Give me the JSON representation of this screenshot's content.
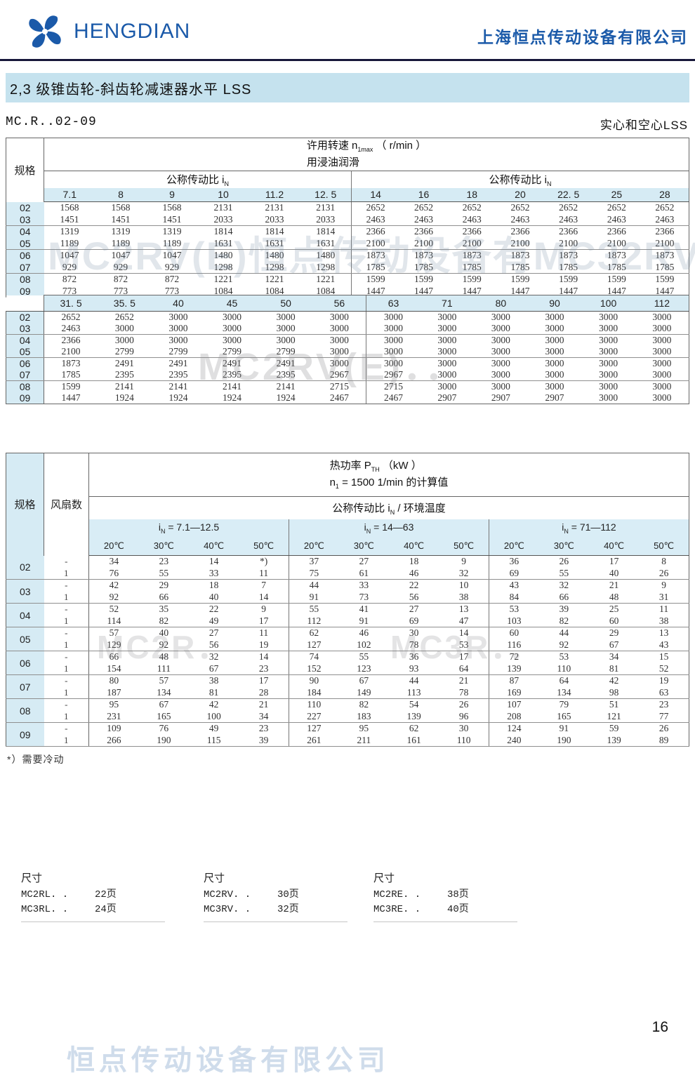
{
  "header": {
    "logo_text": "HENGDIAN",
    "company_name": "上海恒点传动设备有限公司",
    "brand_color": "#1b5aa9"
  },
  "title_bar": "2,3 级锥齿轮-斜齿轮减速器水平 LSS",
  "subtitle_left": "MC.R..02-09",
  "subtitle_right": "实心和空心LSS",
  "speed_table": {
    "spec_label": "规格",
    "title_pre": "许用转速 n",
    "title_sub": "1max",
    "title_suf": " （ r/min ）",
    "title_line2": "用浸油润滑",
    "group_pre": "公称传动比 i",
    "group_sub": "N",
    "part1": {
      "ratios": [
        "7.1",
        "8",
        "9",
        "10",
        "11.2",
        "12. 5",
        "14",
        "16",
        "18",
        "20",
        "22. 5",
        "25",
        "28"
      ],
      "rows": [
        {
          "spec": "02",
          "values": [
            "1568",
            "1568",
            "1568",
            "2131",
            "2131",
            "2131",
            "2652",
            "2652",
            "2652",
            "2652",
            "2652",
            "2652",
            "2652"
          ]
        },
        {
          "spec": "03",
          "values": [
            "1451",
            "1451",
            "1451",
            "2033",
            "2033",
            "2033",
            "2463",
            "2463",
            "2463",
            "2463",
            "2463",
            "2463",
            "2463"
          ]
        },
        {
          "spec": "04",
          "values": [
            "1319",
            "1319",
            "1319",
            "1814",
            "1814",
            "1814",
            "2366",
            "2366",
            "2366",
            "2366",
            "2366",
            "2366",
            "2366"
          ]
        },
        {
          "spec": "05",
          "values": [
            "1189",
            "1189",
            "1189",
            "1631",
            "1631",
            "1631",
            "2100",
            "2100",
            "2100",
            "2100",
            "2100",
            "2100",
            "2100"
          ]
        },
        {
          "spec": "06",
          "values": [
            "1047",
            "1047",
            "1047",
            "1480",
            "1480",
            "1480",
            "1873",
            "1873",
            "1873",
            "1873",
            "1873",
            "1873",
            "1873"
          ]
        },
        {
          "spec": "07",
          "values": [
            "929",
            "929",
            "929",
            "1298",
            "1298",
            "1298",
            "1785",
            "1785",
            "1785",
            "1785",
            "1785",
            "1785",
            "1785"
          ]
        },
        {
          "spec": "08",
          "values": [
            "872",
            "872",
            "872",
            "1221",
            "1221",
            "1221",
            "1599",
            "1599",
            "1599",
            "1599",
            "1599",
            "1599",
            "1599"
          ]
        },
        {
          "spec": "09",
          "values": [
            "773",
            "773",
            "773",
            "1084",
            "1084",
            "1084",
            "1447",
            "1447",
            "1447",
            "1447",
            "1447",
            "1447",
            "1447"
          ]
        }
      ]
    },
    "part2": {
      "ratios": [
        "31. 5",
        "35. 5",
        "40",
        "45",
        "50",
        "56",
        "63",
        "71",
        "80",
        "90",
        "100",
        "112"
      ],
      "rows": [
        {
          "spec": "02",
          "values": [
            "2652",
            "2652",
            "3000",
            "3000",
            "3000",
            "3000",
            "3000",
            "3000",
            "3000",
            "3000",
            "3000",
            "3000"
          ]
        },
        {
          "spec": "03",
          "values": [
            "2463",
            "3000",
            "3000",
            "3000",
            "3000",
            "3000",
            "3000",
            "3000",
            "3000",
            "3000",
            "3000",
            "3000"
          ]
        },
        {
          "spec": "04",
          "values": [
            "2366",
            "3000",
            "3000",
            "3000",
            "3000",
            "3000",
            "3000",
            "3000",
            "3000",
            "3000",
            "3000",
            "3000"
          ]
        },
        {
          "spec": "05",
          "values": [
            "2100",
            "2799",
            "2799",
            "2799",
            "2799",
            "3000",
            "3000",
            "3000",
            "3000",
            "3000",
            "3000",
            "3000"
          ]
        },
        {
          "spec": "06",
          "values": [
            "1873",
            "2491",
            "2491",
            "2491",
            "2491",
            "3000",
            "3000",
            "3000",
            "3000",
            "3000",
            "3000",
            "3000"
          ]
        },
        {
          "spec": "07",
          "values": [
            "1785",
            "2395",
            "2395",
            "2395",
            "2395",
            "2967",
            "2967",
            "3000",
            "3000",
            "3000",
            "3000",
            "3000"
          ]
        },
        {
          "spec": "08",
          "values": [
            "1599",
            "2141",
            "2141",
            "2141",
            "2141",
            "2715",
            "2715",
            "3000",
            "3000",
            "3000",
            "3000",
            "3000"
          ]
        },
        {
          "spec": "09",
          "values": [
            "1447",
            "1924",
            "1924",
            "1924",
            "1924",
            "2467",
            "2467",
            "2907",
            "2907",
            "2907",
            "3000",
            "3000"
          ]
        }
      ]
    }
  },
  "thermal_table": {
    "spec_label": "规格",
    "fan_label": "风扇数",
    "title1_pre": "热功率 P",
    "title1_sub": "TH",
    "title1_suf": " （kW ）",
    "title2_pre": "n",
    "title2_sub": "1",
    "title2_suf": " = 1500 1/min 的计算值",
    "subtitle_pre": "公称传动比 i",
    "subtitle_sub": "N",
    "subtitle_suf": " / 环境温度",
    "groups": [
      {
        "pre": "i",
        "sub": "N",
        "suf": " = 7.1—12.5"
      },
      {
        "pre": "i",
        "sub": "N",
        "suf": " = 14—63"
      },
      {
        "pre": "i",
        "sub": "N",
        "suf": " = 71—112"
      }
    ],
    "temps": [
      "20℃",
      "30℃",
      "40℃",
      "50℃"
    ],
    "fan_values": [
      "-",
      "1"
    ],
    "rows": [
      {
        "spec": "02",
        "no_fan": [
          "34",
          "23",
          "14",
          "*)",
          "37",
          "27",
          "18",
          "9",
          "36",
          "26",
          "17",
          "8"
        ],
        "with_fan": [
          "76",
          "55",
          "33",
          "11",
          "75",
          "61",
          "46",
          "32",
          "69",
          "55",
          "40",
          "26"
        ]
      },
      {
        "spec": "03",
        "no_fan": [
          "42",
          "29",
          "18",
          "7",
          "44",
          "33",
          "22",
          "10",
          "43",
          "32",
          "21",
          "9"
        ],
        "with_fan": [
          "92",
          "66",
          "40",
          "14",
          "91",
          "73",
          "56",
          "38",
          "84",
          "66",
          "48",
          "31"
        ]
      },
      {
        "spec": "04",
        "no_fan": [
          "52",
          "35",
          "22",
          "9",
          "55",
          "41",
          "27",
          "13",
          "53",
          "39",
          "25",
          "11"
        ],
        "with_fan": [
          "114",
          "82",
          "49",
          "17",
          "112",
          "91",
          "69",
          "47",
          "103",
          "82",
          "60",
          "38"
        ]
      },
      {
        "spec": "05",
        "no_fan": [
          "57",
          "40",
          "27",
          "11",
          "62",
          "46",
          "30",
          "14",
          "60",
          "44",
          "29",
          "13"
        ],
        "with_fan": [
          "129",
          "92",
          "56",
          "19",
          "127",
          "102",
          "78",
          "53",
          "116",
          "92",
          "67",
          "43"
        ]
      },
      {
        "spec": "06",
        "no_fan": [
          "66",
          "48",
          "32",
          "14",
          "74",
          "55",
          "36",
          "17",
          "72",
          "53",
          "34",
          "15"
        ],
        "with_fan": [
          "154",
          "111",
          "67",
          "23",
          "152",
          "123",
          "93",
          "64",
          "139",
          "110",
          "81",
          "52"
        ]
      },
      {
        "spec": "07",
        "no_fan": [
          "80",
          "57",
          "38",
          "17",
          "90",
          "67",
          "44",
          "21",
          "87",
          "64",
          "42",
          "19"
        ],
        "with_fan": [
          "187",
          "134",
          "81",
          "28",
          "184",
          "149",
          "113",
          "78",
          "169",
          "134",
          "98",
          "63"
        ]
      },
      {
        "spec": "08",
        "no_fan": [
          "95",
          "67",
          "42",
          "21",
          "110",
          "82",
          "54",
          "26",
          "107",
          "79",
          "51",
          "23"
        ],
        "with_fan": [
          "231",
          "165",
          "100",
          "34",
          "227",
          "183",
          "139",
          "96",
          "208",
          "165",
          "121",
          "77"
        ]
      },
      {
        "spec": "09",
        "no_fan": [
          "109",
          "76",
          "49",
          "23",
          "127",
          "95",
          "62",
          "30",
          "124",
          "91",
          "59",
          "26"
        ],
        "with_fan": [
          "266",
          "190",
          "115",
          "39",
          "261",
          "211",
          "161",
          "110",
          "240",
          "190",
          "139",
          "89"
        ]
      }
    ]
  },
  "footnote": "*）需要冷动",
  "dimension_links": [
    {
      "title": "尺寸",
      "rows": [
        {
          "model": "MC2RL. .",
          "page": "22页"
        },
        {
          "model": "MC3RL. .",
          "page": "24页"
        }
      ]
    },
    {
      "title": "尺寸",
      "rows": [
        {
          "model": "MC2RV. .",
          "page": "30页"
        },
        {
          "model": "MC3RV. .",
          "page": "32页"
        }
      ]
    },
    {
      "title": "尺寸",
      "rows": [
        {
          "model": "MC2RE. .",
          "page": "38页"
        },
        {
          "model": "MC3RE. .",
          "page": "40页"
        }
      ]
    }
  ],
  "page_number": "16",
  "watermarks": {
    "table1": "MC2RV(E)恒点传动设备有MC32RV(E).",
    "table2": "MC2RV(E)．．",
    "table3_left": "MC2R．",
    "table3_right": "MC3R．．",
    "bottom": "恒点传动设备有限公司"
  }
}
